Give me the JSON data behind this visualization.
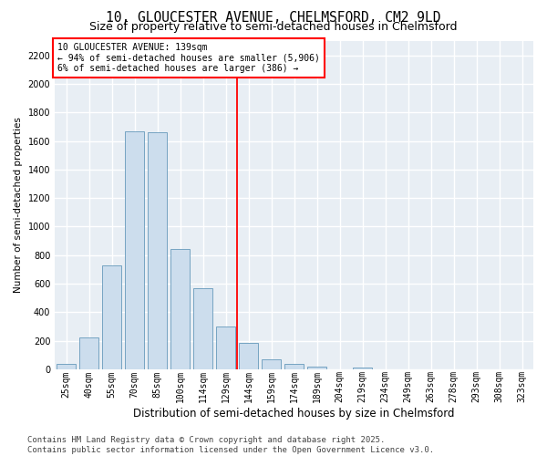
{
  "title": "10, GLOUCESTER AVENUE, CHELMSFORD, CM2 9LD",
  "subtitle": "Size of property relative to semi-detached houses in Chelmsford",
  "xlabel": "Distribution of semi-detached houses by size in Chelmsford",
  "ylabel": "Number of semi-detached properties",
  "bar_labels": [
    "25sqm",
    "40sqm",
    "55sqm",
    "70sqm",
    "85sqm",
    "100sqm",
    "114sqm",
    "129sqm",
    "144sqm",
    "159sqm",
    "174sqm",
    "189sqm",
    "204sqm",
    "219sqm",
    "234sqm",
    "249sqm",
    "263sqm",
    "278sqm",
    "293sqm",
    "308sqm",
    "323sqm"
  ],
  "bar_values": [
    40,
    225,
    730,
    1670,
    1660,
    845,
    565,
    300,
    185,
    70,
    35,
    20,
    0,
    10,
    0,
    0,
    0,
    0,
    0,
    0,
    0
  ],
  "bar_color": "#ccdded",
  "bar_edgecolor": "#6699bb",
  "ylim": [
    0,
    2300
  ],
  "yticks": [
    0,
    200,
    400,
    600,
    800,
    1000,
    1200,
    1400,
    1600,
    1800,
    2000,
    2200
  ],
  "vline_index": 8,
  "vline_color": "red",
  "annotation_title": "10 GLOUCESTER AVENUE: 139sqm",
  "annotation_line1": "← 94% of semi-detached houses are smaller (5,906)",
  "annotation_line2": "6% of semi-detached houses are larger (386) →",
  "annotation_box_color": "white",
  "annotation_box_edgecolor": "red",
  "footer_line1": "Contains HM Land Registry data © Crown copyright and database right 2025.",
  "footer_line2": "Contains public sector information licensed under the Open Government Licence v3.0.",
  "bg_color": "#ffffff",
  "plot_bg_color": "#e8eef4",
  "grid_color": "white",
  "title_fontsize": 10.5,
  "subtitle_fontsize": 9,
  "ylabel_fontsize": 7.5,
  "xlabel_fontsize": 8.5,
  "tick_fontsize": 7,
  "footer_fontsize": 6.5,
  "annotation_fontsize": 7
}
